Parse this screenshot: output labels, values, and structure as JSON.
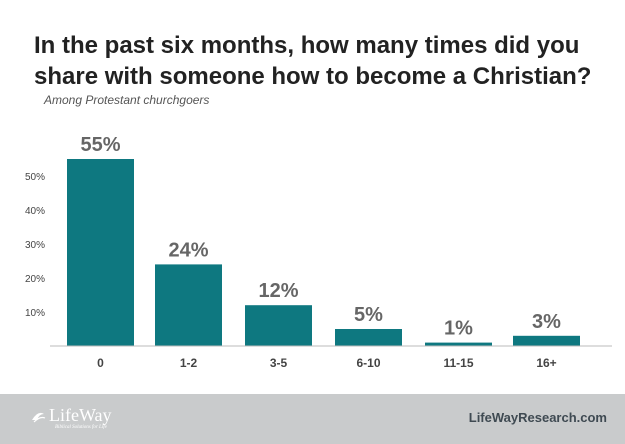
{
  "colors": {
    "bar": "#0e7880",
    "footer_bg": "#c9cbcc",
    "title": "#222222"
  },
  "footer": {
    "logo_text": "LifeWay",
    "logo_tagline": "Biblical Solutions for Life",
    "site_link": "LifeWayResearch.com"
  },
  "chart_data": {
    "type": "bar",
    "title": "In the past six months, how many times did you share with someone how to become a Christian?",
    "subtitle": "Among Protestant churchgoers",
    "categories": [
      "0",
      "1-2",
      "3-5",
      "6-10",
      "11-15",
      "16+"
    ],
    "values": [
      55,
      24,
      12,
      5,
      1,
      3
    ],
    "data_labels": [
      "55%",
      "24%",
      "12%",
      "5%",
      "1%",
      "3%"
    ],
    "y_ticks": [
      10,
      20,
      30,
      40,
      50
    ],
    "y_tick_labels": [
      "10%",
      "20%",
      "30%",
      "40%",
      "50%"
    ],
    "ylim": [
      0,
      60
    ],
    "grid": false,
    "legend": "none"
  }
}
